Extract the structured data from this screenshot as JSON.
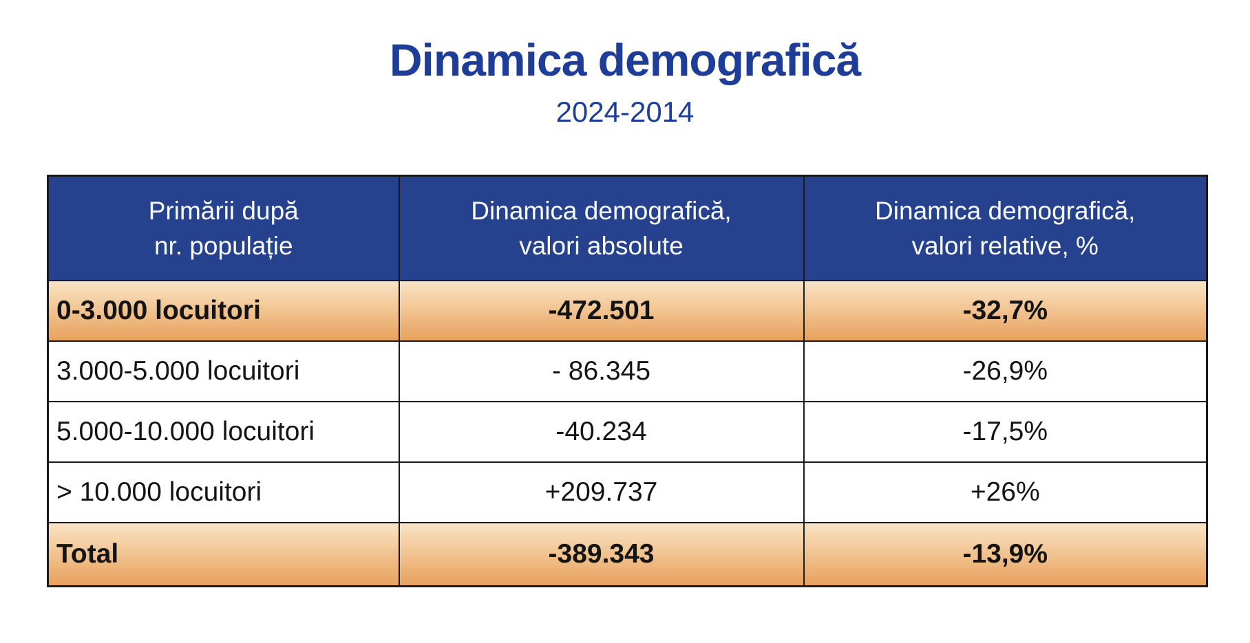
{
  "title": {
    "text": "Dinamica demografică",
    "subtitle": "2024-2014"
  },
  "colors": {
    "title_blue": "#1d3d99",
    "header_bg": "#26428f",
    "header_text": "#f8faff",
    "border": "#1a1a1a",
    "highlight_gradient_top": "#f9e4c7",
    "highlight_gradient_bottom": "#e8a15c",
    "body_text": "#141414"
  },
  "table": {
    "columns": [
      {
        "line1": "Primării după",
        "line2": "nr. populație"
      },
      {
        "line1": "Dinamica demografică,",
        "line2": "valori absolute"
      },
      {
        "line1": "Dinamica demografică,",
        "line2": "valori relative, %"
      }
    ],
    "rows": [
      {
        "label": "0-3.000 locuitori",
        "absolute": "-472.501",
        "relative": "-32,7%",
        "highlight": true,
        "bold": true,
        "total": false
      },
      {
        "label": "3.000-5.000 locuitori",
        "absolute": "- 86.345",
        "relative": "-26,9%",
        "highlight": false,
        "bold": false,
        "total": false
      },
      {
        "label": "5.000-10.000 locuitori",
        "absolute": "-40.234",
        "relative": "-17,5%",
        "highlight": false,
        "bold": false,
        "total": false
      },
      {
        "label": "> 10.000 locuitori",
        "absolute": "+209.737",
        "relative": "+26%",
        "highlight": false,
        "bold": false,
        "total": false
      },
      {
        "label": "Total",
        "absolute": "-389.343",
        "relative": "-13,9%",
        "highlight": true,
        "bold": true,
        "total": true
      }
    ]
  }
}
